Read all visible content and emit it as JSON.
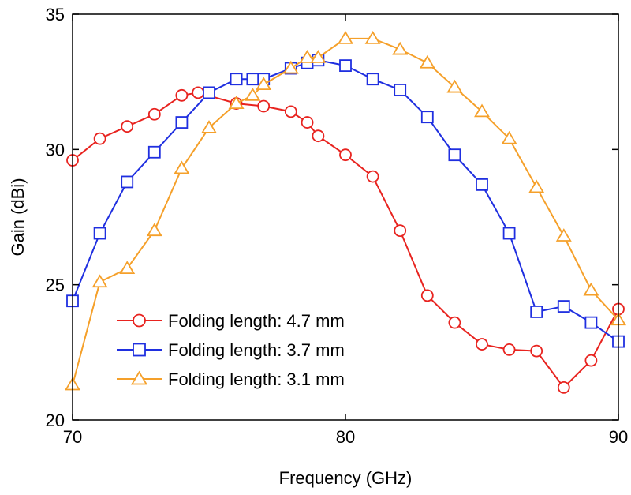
{
  "chart_data": {
    "type": "line",
    "title": "",
    "xlabel": "Frequency (GHz)",
    "ylabel": "Gain (dBi)",
    "xlim": [
      70,
      90
    ],
    "ylim": [
      20,
      35
    ],
    "xticks": [
      70,
      80,
      90
    ],
    "yticks": [
      20,
      25,
      30,
      35
    ],
    "xtick_labels": [
      "70",
      "80",
      "90"
    ],
    "ytick_labels": [
      "20",
      "25",
      "30",
      "35"
    ],
    "grid": false,
    "legend_position": "bottom-left",
    "series": [
      {
        "name": "Folding length: 4.7 mm",
        "color": "#e8231f",
        "marker": "circle",
        "x": [
          70,
          71,
          72,
          73,
          74,
          74.6,
          76,
          77,
          78,
          78.6,
          79,
          80,
          81,
          82,
          83,
          84,
          85,
          86,
          87,
          88,
          89,
          90
        ],
        "y": [
          29.6,
          30.4,
          30.85,
          31.3,
          32.0,
          32.1,
          31.7,
          31.6,
          31.4,
          31.0,
          30.5,
          29.8,
          29.0,
          27.0,
          24.6,
          23.6,
          22.8,
          22.6,
          22.55,
          21.2,
          22.2,
          24.1
        ]
      },
      {
        "name": "Folding length: 3.7 mm",
        "color": "#1f2fe0",
        "marker": "square",
        "x": [
          70,
          71,
          72,
          73,
          74,
          75,
          76,
          76.6,
          77,
          78,
          78.6,
          79,
          80,
          81,
          82,
          83,
          84,
          85,
          86,
          87,
          88,
          89,
          90
        ],
        "y": [
          24.4,
          26.9,
          28.8,
          29.9,
          31.0,
          32.1,
          32.6,
          32.6,
          32.6,
          33.0,
          33.2,
          33.3,
          33.1,
          32.6,
          32.2,
          31.2,
          29.8,
          28.7,
          26.9,
          24.0,
          24.2,
          23.6,
          22.9
        ]
      },
      {
        "name": "Folding length: 3.1 mm",
        "color": "#f5a02a",
        "marker": "triangle",
        "x": [
          70,
          71,
          72,
          73,
          74,
          75,
          76,
          76.6,
          77,
          78,
          78.6,
          79,
          80,
          81,
          82,
          83,
          84,
          85,
          86,
          87,
          88,
          89,
          90
        ],
        "y": [
          21.3,
          25.1,
          25.6,
          27.0,
          29.3,
          30.8,
          31.7,
          32.0,
          32.4,
          33.0,
          33.4,
          33.4,
          34.1,
          34.1,
          33.7,
          33.2,
          32.3,
          31.4,
          30.4,
          28.6,
          26.8,
          24.8,
          23.7
        ]
      }
    ]
  }
}
